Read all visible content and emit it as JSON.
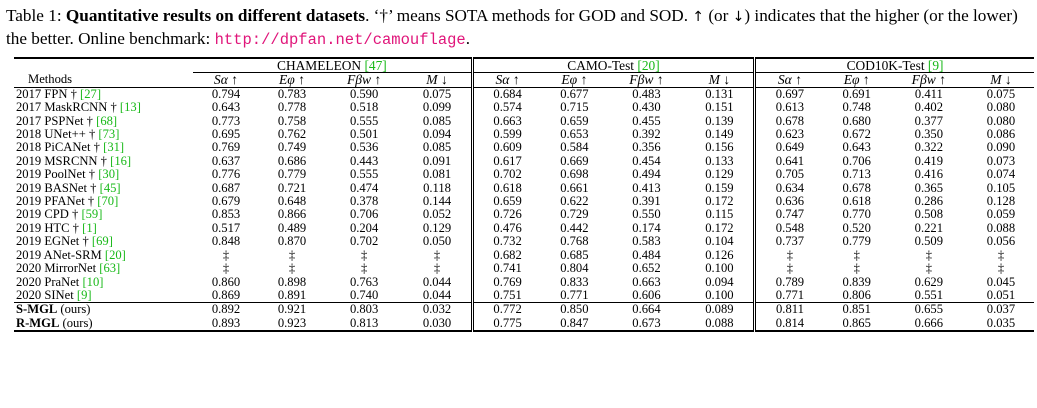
{
  "caption": {
    "label": "Table 1: ",
    "title": "Quantitative results on different datasets",
    "text1": ". ‘†’ means SOTA methods for GOD and SOD. ",
    "up": "↑",
    "text2": " (or ",
    "down": "↓",
    "text3": ") indicates that the higher (or the lower) the better. Online benchmark: ",
    "url": "http://dpfan.net/camouflage",
    "text4": "."
  },
  "table": {
    "methods_header": "Methods",
    "datasets": [
      {
        "name": "CHAMELEON ",
        "ref": "[47]"
      },
      {
        "name": "CAMO-Test ",
        "ref": "[20]"
      },
      {
        "name": "COD10K-Test ",
        "ref": "[9]"
      }
    ],
    "metrics": [
      "Sα ↑",
      "Eφ ↑",
      "Fβw ↑",
      "M ↓"
    ],
    "rows": [
      {
        "method": "2017 FPN † ",
        "ref": "[27]",
        "values": [
          "0.794",
          "0.783",
          "0.590",
          "0.075",
          "0.684",
          "0.677",
          "0.483",
          "0.131",
          "0.697",
          "0.691",
          "0.411",
          "0.075"
        ]
      },
      {
        "method": "2017 MaskRCNN † ",
        "ref": "[13]",
        "values": [
          "0.643",
          "0.778",
          "0.518",
          "0.099",
          "0.574",
          "0.715",
          "0.430",
          "0.151",
          "0.613",
          "0.748",
          "0.402",
          "0.080"
        ]
      },
      {
        "method": "2017 PSPNet † ",
        "ref": "[68]",
        "values": [
          "0.773",
          "0.758",
          "0.555",
          "0.085",
          "0.663",
          "0.659",
          "0.455",
          "0.139",
          "0.678",
          "0.680",
          "0.377",
          "0.080"
        ]
      },
      {
        "method": "2018 UNet++ † ",
        "ref": "[73]",
        "values": [
          "0.695",
          "0.762",
          "0.501",
          "0.094",
          "0.599",
          "0.653",
          "0.392",
          "0.149",
          "0.623",
          "0.672",
          "0.350",
          "0.086"
        ]
      },
      {
        "method": "2018 PiCANet † ",
        "ref": "[31]",
        "values": [
          "0.769",
          "0.749",
          "0.536",
          "0.085",
          "0.609",
          "0.584",
          "0.356",
          "0.156",
          "0.649",
          "0.643",
          "0.322",
          "0.090"
        ]
      },
      {
        "method": "2019 MSRCNN † ",
        "ref": "[16]",
        "values": [
          "0.637",
          "0.686",
          "0.443",
          "0.091",
          "0.617",
          "0.669",
          "0.454",
          "0.133",
          "0.641",
          "0.706",
          "0.419",
          "0.073"
        ]
      },
      {
        "method": "2019 PoolNet † ",
        "ref": "[30]",
        "values": [
          "0.776",
          "0.779",
          "0.555",
          "0.081",
          "0.702",
          "0.698",
          "0.494",
          "0.129",
          "0.705",
          "0.713",
          "0.416",
          "0.074"
        ]
      },
      {
        "method": "2019 BASNet † ",
        "ref": "[45]",
        "values": [
          "0.687",
          "0.721",
          "0.474",
          "0.118",
          "0.618",
          "0.661",
          "0.413",
          "0.159",
          "0.634",
          "0.678",
          "0.365",
          "0.105"
        ]
      },
      {
        "method": "2019 PFANet † ",
        "ref": "[70]",
        "values": [
          "0.679",
          "0.648",
          "0.378",
          "0.144",
          "0.659",
          "0.622",
          "0.391",
          "0.172",
          "0.636",
          "0.618",
          "0.286",
          "0.128"
        ]
      },
      {
        "method": "2019 CPD † ",
        "ref": "[59]",
        "values": [
          "0.853",
          "0.866",
          "0.706",
          "0.052",
          "0.726",
          "0.729",
          "0.550",
          "0.115",
          "0.747",
          "0.770",
          "0.508",
          "0.059"
        ]
      },
      {
        "method": "2019 HTC † ",
        "ref": "[1]",
        "values": [
          "0.517",
          "0.489",
          "0.204",
          "0.129",
          "0.476",
          "0.442",
          "0.174",
          "0.172",
          "0.548",
          "0.520",
          "0.221",
          "0.088"
        ]
      },
      {
        "method": "2019 EGNet † ",
        "ref": "[69]",
        "values": [
          "0.848",
          "0.870",
          "0.702",
          "0.050",
          "0.732",
          "0.768",
          "0.583",
          "0.104",
          "0.737",
          "0.779",
          "0.509",
          "0.056"
        ]
      },
      {
        "method": "2019 ANet-SRM ",
        "ref": "[20]",
        "values": [
          "‡",
          "‡",
          "‡",
          "‡",
          "0.682",
          "0.685",
          "0.484",
          "0.126",
          "‡",
          "‡",
          "‡",
          "‡"
        ]
      },
      {
        "method": "2020 MirrorNet ",
        "ref": "[63]",
        "values": [
          "‡",
          "‡",
          "‡",
          "‡",
          "0.741",
          "0.804",
          "0.652",
          "0.100",
          "‡",
          "‡",
          "‡",
          "‡"
        ]
      },
      {
        "method": "2020 PraNet ",
        "ref": "[10]",
        "values": [
          "0.860",
          "0.898",
          "0.763",
          "0.044",
          "0.769",
          "0.833",
          "0.663",
          "0.094",
          "0.789",
          "0.839",
          "0.629",
          "0.045"
        ]
      },
      {
        "method": "2020 SINet ",
        "ref": "[9]",
        "values": [
          "0.869",
          "0.891",
          "0.740",
          "0.044",
          "0.751",
          "0.771",
          "0.606",
          "0.100",
          "0.771",
          "0.806",
          "0.551",
          "0.051"
        ]
      }
    ],
    "ours": [
      {
        "method": "S-MGL",
        "suffix": " (ours)",
        "values": [
          "0.892",
          "0.921",
          "0.803",
          "0.032",
          "0.772",
          "0.850",
          "0.664",
          "0.089",
          "0.811",
          "0.851",
          "0.655",
          "0.037"
        ],
        "bold": [
          false,
          false,
          false,
          false,
          false,
          true,
          false,
          false,
          false,
          false,
          false,
          false
        ]
      },
      {
        "method": "R-MGL",
        "suffix": " (ours)",
        "values": [
          "0.893",
          "0.923",
          "0.813",
          "0.030",
          "0.775",
          "0.847",
          "0.673",
          "0.088",
          "0.814",
          "0.865",
          "0.666",
          "0.035"
        ],
        "bold": [
          true,
          true,
          true,
          true,
          true,
          false,
          true,
          true,
          true,
          true,
          true,
          true
        ]
      }
    ]
  }
}
